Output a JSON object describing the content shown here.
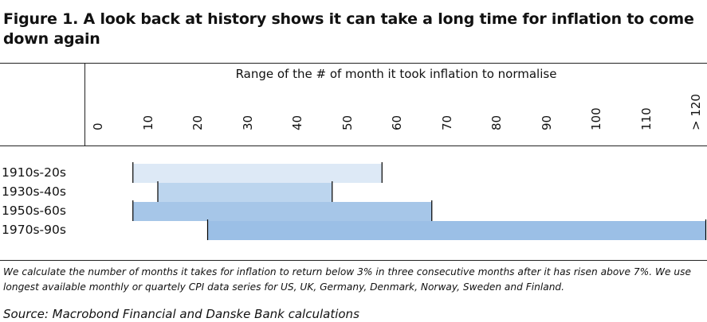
{
  "title": "Figure 1. A look back at history shows it can take a long time for inflation to come down again",
  "chart_data": {
    "type": "bar",
    "orientation": "horizontal-range",
    "title": "Range of the # of month it took inflation to normalise",
    "xlim": [
      0,
      122
    ],
    "ticks": [
      {
        "value": 0,
        "label": "0"
      },
      {
        "value": 10,
        "label": "10"
      },
      {
        "value": 20,
        "label": "20"
      },
      {
        "value": 30,
        "label": "30"
      },
      {
        "value": 40,
        "label": "40"
      },
      {
        "value": 50,
        "label": "50"
      },
      {
        "value": 60,
        "label": "60"
      },
      {
        "value": 70,
        "label": "70"
      },
      {
        "value": 80,
        "label": "80"
      },
      {
        "value": 90,
        "label": "90"
      },
      {
        "value": 100,
        "label": "100"
      },
      {
        "value": 110,
        "label": "110"
      },
      {
        "value": 120,
        "label": "> 120"
      }
    ],
    "series": [
      {
        "name": "1910s-20s",
        "start": 7,
        "end": 57,
        "color": "#dde9f6"
      },
      {
        "name": "1930s-40s",
        "start": 12,
        "end": 47,
        "color": "#bcd5ee"
      },
      {
        "name": "1950s-60s",
        "start": 7,
        "end": 67,
        "color": "#a6c6e8"
      },
      {
        "name": "1970s-90s",
        "start": 22,
        "end": 122,
        "color": "#9bbfe6"
      }
    ]
  },
  "note": "We calculate the number of months it takes for inflation to return below 3% in three consecutive months after it has risen above 7%. We use longest available monthly or quartely CPI data series for US, UK, Germany, Denmark, Norway, Sweden and Finland.",
  "source": "Source: Macrobond Financial and Danske Bank calculations"
}
